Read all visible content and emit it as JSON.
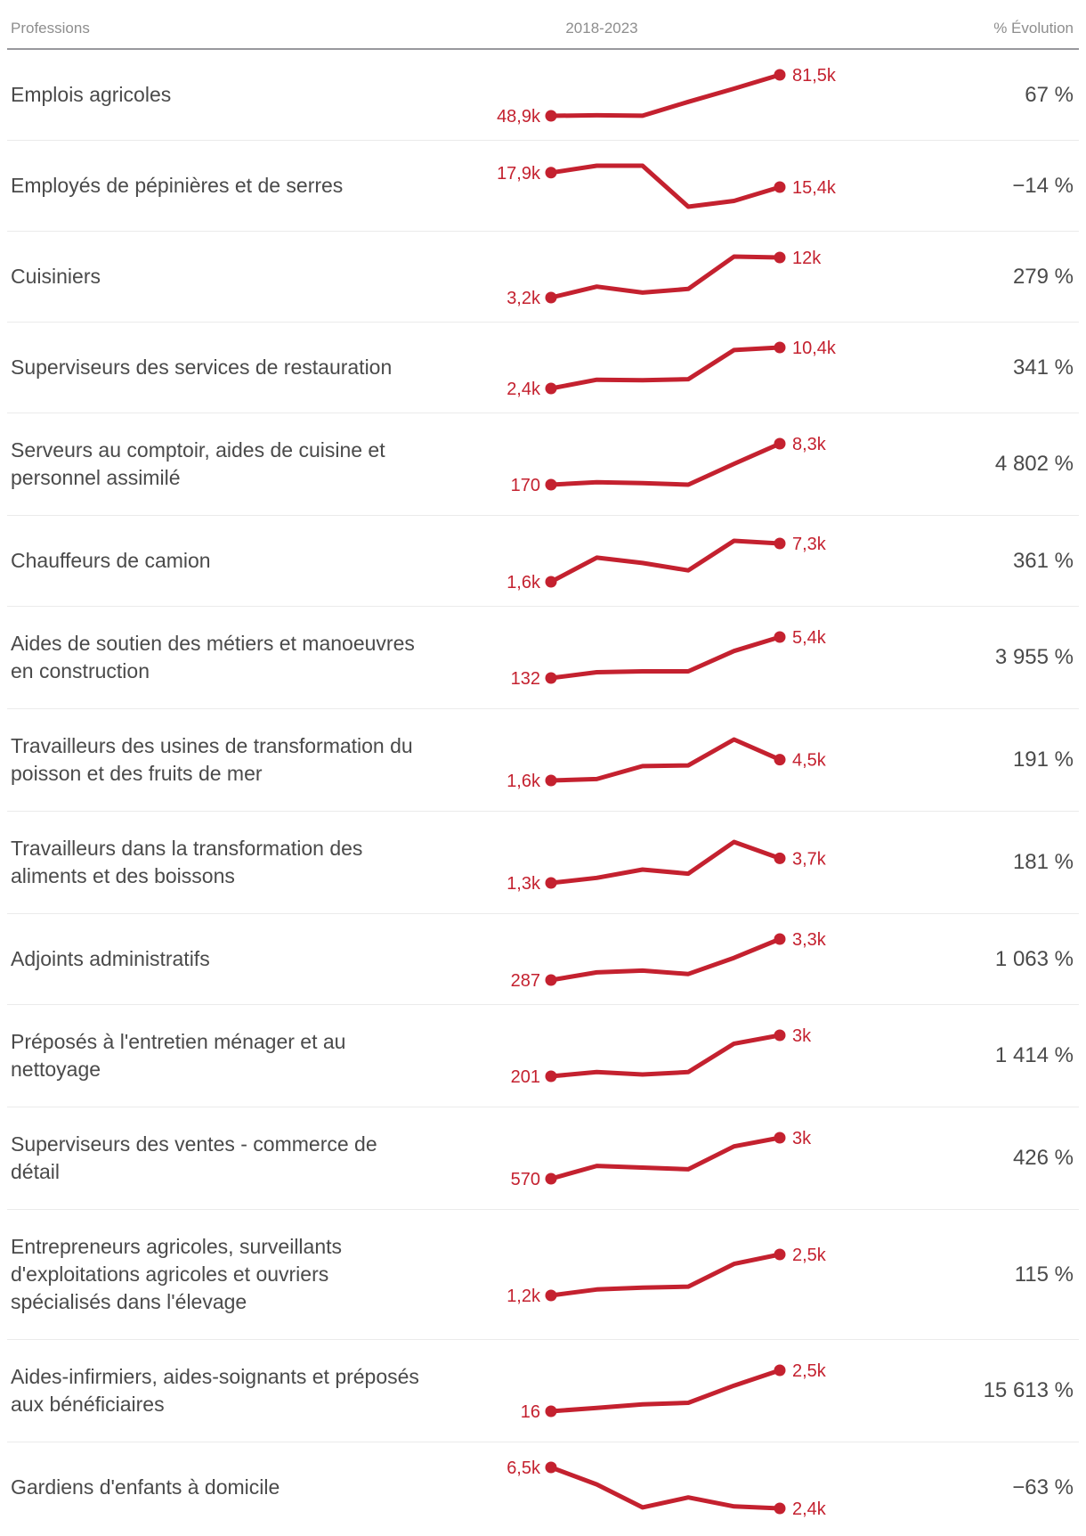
{
  "header": {
    "professions": "Professions",
    "period": "2018-2023",
    "evolution": "% Évolution"
  },
  "colors": {
    "accent": "#c4212f",
    "text": "#4a4a4a",
    "muted": "#8e8e8e",
    "separator": "#ebebeb",
    "header_rule": "#98989d"
  },
  "chart_data": {
    "type": "line",
    "x": [
      2018,
      2019,
      2020,
      2021,
      2022,
      2023
    ],
    "xlabel": "",
    "ylabel": "",
    "grid": false,
    "legend": "none",
    "series": [
      {
        "name": "Emplois agricoles",
        "values": [
          48900,
          49300,
          49000,
          60000,
          70500,
          81500
        ],
        "start_label": "48,9k",
        "end_label": "81,5k",
        "evolution": "67 %"
      },
      {
        "name": "Employés de pépinières et de serres",
        "values": [
          17900,
          19100,
          19100,
          12000,
          13000,
          15400
        ],
        "start_label": "17,9k",
        "end_label": "15,4k",
        "evolution": "−14 %"
      },
      {
        "name": "Cuisiniers",
        "values": [
          3200,
          5600,
          4300,
          5100,
          12200,
          12000
        ],
        "start_label": "3,2k",
        "end_label": "12k",
        "evolution": "279 %"
      },
      {
        "name": "Superviseurs des services de restauration",
        "values": [
          2400,
          4100,
          4000,
          4200,
          9900,
          10400
        ],
        "start_label": "2,4k",
        "end_label": "10,4k",
        "evolution": "341 %"
      },
      {
        "name": "Serveurs au comptoir, aides de cuisine et personnel assimilé",
        "values": [
          170,
          650,
          480,
          170,
          4300,
          8300
        ],
        "start_label": "170",
        "end_label": "8,3k",
        "evolution": "4 802 %"
      },
      {
        "name": "Chauffeurs de camion",
        "values": [
          1600,
          5200,
          4400,
          3300,
          7700,
          7300
        ],
        "start_label": "1,6k",
        "end_label": "7,3k",
        "evolution": "361 %"
      },
      {
        "name": "Aides de soutien des métiers et manoeuvres en construction",
        "values": [
          132,
          880,
          990,
          990,
          3600,
          5400
        ],
        "start_label": "132",
        "end_label": "5,4k",
        "evolution": "3 955 %"
      },
      {
        "name": "Travailleurs des usines de transformation du poisson et des fruits de mer",
        "values": [
          1600,
          1800,
          3600,
          3700,
          7300,
          4500
        ],
        "start_label": "1,6k",
        "end_label": "4,5k",
        "evolution": "191 %"
      },
      {
        "name": "Travailleurs dans la transformation des aliments et des boissons",
        "values": [
          1300,
          1800,
          2600,
          2200,
          5300,
          3700
        ],
        "start_label": "1,3k",
        "end_label": "3,7k",
        "evolution": "181 %"
      },
      {
        "name": "Adjoints administratifs",
        "values": [
          287,
          850,
          980,
          730,
          1920,
          3300
        ],
        "start_label": "287",
        "end_label": "3,3k",
        "evolution": "1 063 %"
      },
      {
        "name": "Préposés à l'entretien ménager et au nettoyage",
        "values": [
          201,
          490,
          320,
          490,
          2430,
          3000
        ],
        "start_label": "201",
        "end_label": "3k",
        "evolution": "1 414 %"
      },
      {
        "name": "Superviseurs des ventes - commerce de détail",
        "values": [
          570,
          1330,
          1230,
          1130,
          2490,
          3000
        ],
        "start_label": "570",
        "end_label": "3k",
        "evolution": "426 %"
      },
      {
        "name": "Entrepreneurs agricoles, surveillants d'exploitations agricoles et ouvriers spécialisés dans l'élevage",
        "values": [
          1200,
          1390,
          1450,
          1480,
          2200,
          2500
        ],
        "start_label": "1,2k",
        "end_label": "2,5k",
        "evolution": "115 %"
      },
      {
        "name": "Aides-infirmiers, aides-soignants et préposés aux bénéficiaires",
        "values": [
          16,
          220,
          430,
          530,
          1570,
          2500
        ],
        "start_label": "16",
        "end_label": "2,5k",
        "evolution": "15 613 %"
      },
      {
        "name": "Gardiens d'enfants à domicile",
        "values": [
          6500,
          4800,
          2500,
          3500,
          2600,
          2400
        ],
        "start_label": "6,5k",
        "end_label": "2,4k",
        "evolution": "−63 %"
      }
    ]
  }
}
